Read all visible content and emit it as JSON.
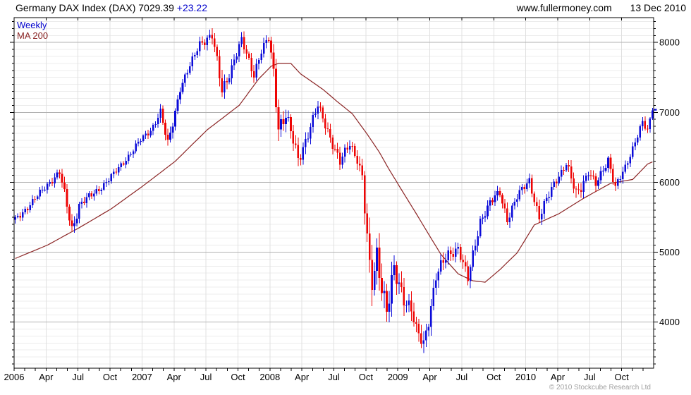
{
  "header": {
    "title": "Germany DAX Index (DAX) 7029.39",
    "change": "+23.22",
    "site": "www.fullermoney.com",
    "date": "13 Dec 2010"
  },
  "legend": {
    "weekly": "Weekly",
    "ma200": "MA 200"
  },
  "footer": {
    "copyright": "© 2010 Stockcube Research Ltd"
  },
  "chart_data": {
    "type": "candlestick",
    "instrument": "Germany DAX Index (DAX)",
    "interval": "Weekly",
    "overlay": "MA 200",
    "last_close": 7029.39,
    "change": 23.22,
    "as_of": "13 Dec 2010",
    "x_start": "2006-01",
    "x_end": "2010-12",
    "weeks": 260,
    "months": 60,
    "ylim": [
      3340,
      8355
    ],
    "y_major_ticks": [
      4000,
      5000,
      6000,
      7000,
      8000
    ],
    "y_minor_step": 100,
    "x_tick_labels": [
      "2006",
      "Apr",
      "Jul",
      "Oct",
      "2007",
      "Apr",
      "Jul",
      "Oct",
      "2008",
      "Apr",
      "Jul",
      "Oct",
      "2009",
      "Apr",
      "Jul",
      "Oct",
      "2010",
      "Apr",
      "Jul",
      "Oct"
    ],
    "price_anchors_weekly": [
      [
        0,
        5460,
        70
      ],
      [
        5,
        5650,
        70
      ],
      [
        9,
        5800,
        65
      ],
      [
        14,
        6010,
        70
      ],
      [
        18,
        6140,
        90
      ],
      [
        23,
        5330,
        140
      ],
      [
        26,
        5680,
        95
      ],
      [
        31,
        5810,
        75
      ],
      [
        35,
        5940,
        70
      ],
      [
        40,
        6110,
        70
      ],
      [
        44,
        6290,
        65
      ],
      [
        51,
        6600,
        65
      ],
      [
        55,
        6750,
        70
      ],
      [
        59,
        7000,
        85
      ],
      [
        62,
        6530,
        120
      ],
      [
        67,
        7350,
        85
      ],
      [
        71,
        7650,
        80
      ],
      [
        75,
        8000,
        85
      ],
      [
        80,
        8090,
        115
      ],
      [
        84,
        7320,
        150
      ],
      [
        88,
        7650,
        110
      ],
      [
        92,
        8020,
        95
      ],
      [
        97,
        7560,
        115
      ],
      [
        100,
        7870,
        95
      ],
      [
        103,
        8050,
        95
      ],
      [
        105,
        7580,
        160
      ],
      [
        107,
        6820,
        210
      ],
      [
        110,
        6950,
        150
      ],
      [
        115,
        6330,
        150
      ],
      [
        119,
        6700,
        120
      ],
      [
        123,
        7080,
        105
      ],
      [
        127,
        6750,
        110
      ],
      [
        132,
        6270,
        115
      ],
      [
        136,
        6560,
        105
      ],
      [
        139,
        6350,
        120
      ],
      [
        141,
        6060,
        150
      ],
      [
        144,
        4700,
        290
      ],
      [
        145,
        4550,
        300
      ],
      [
        147,
        4990,
        270
      ],
      [
        151,
        4150,
        270
      ],
      [
        154,
        4700,
        230
      ],
      [
        158,
        4370,
        190
      ],
      [
        161,
        4200,
        170
      ],
      [
        163,
        3850,
        170
      ],
      [
        166,
        3670,
        170
      ],
      [
        168,
        4050,
        160
      ],
      [
        171,
        4670,
        150
      ],
      [
        176,
        4950,
        130
      ],
      [
        180,
        5080,
        110
      ],
      [
        184,
        4600,
        130
      ],
      [
        189,
        5460,
        105
      ],
      [
        193,
        5700,
        95
      ],
      [
        197,
        5850,
        95
      ],
      [
        200,
        5480,
        105
      ],
      [
        204,
        5780,
        95
      ],
      [
        209,
        6040,
        85
      ],
      [
        213,
        5480,
        115
      ],
      [
        219,
        6000,
        85
      ],
      [
        224,
        6250,
        85
      ],
      [
        228,
        5830,
        150
      ],
      [
        233,
        6150,
        95
      ],
      [
        236,
        5950,
        95
      ],
      [
        241,
        6340,
        85
      ],
      [
        244,
        5920,
        95
      ],
      [
        248,
        6200,
        85
      ],
      [
        252,
        6600,
        75
      ],
      [
        255,
        6850,
        80
      ],
      [
        257,
        6720,
        80
      ],
      [
        259,
        7029.39,
        60
      ]
    ],
    "ma200_anchors_weekly": [
      [
        0,
        4910
      ],
      [
        13,
        5100
      ],
      [
        26,
        5350
      ],
      [
        39,
        5620
      ],
      [
        52,
        5950
      ],
      [
        65,
        6300
      ],
      [
        78,
        6750
      ],
      [
        91,
        7100
      ],
      [
        99,
        7480
      ],
      [
        104,
        7660
      ],
      [
        107,
        7700
      ],
      [
        112,
        7700
      ],
      [
        116,
        7550
      ],
      [
        125,
        7330
      ],
      [
        131,
        7150
      ],
      [
        137,
        6980
      ],
      [
        143,
        6690
      ],
      [
        148,
        6430
      ],
      [
        152,
        6180
      ],
      [
        156,
        5950
      ],
      [
        163,
        5550
      ],
      [
        169,
        5200
      ],
      [
        173,
        4970
      ],
      [
        180,
        4690
      ],
      [
        186,
        4590
      ],
      [
        191,
        4570
      ],
      [
        197,
        4750
      ],
      [
        204,
        4990
      ],
      [
        211,
        5390
      ],
      [
        221,
        5550
      ],
      [
        231,
        5770
      ],
      [
        242,
        5985
      ],
      [
        251,
        6040
      ],
      [
        257,
        6260
      ],
      [
        259,
        6290
      ]
    ],
    "colors": {
      "up": "#0b0bd9",
      "down": "#ee0404",
      "ma": "#8b2525",
      "accent_blue": "#0000cc",
      "grid_minor": "#ececec",
      "grid_major": "#b2b2b2",
      "grid_vertical": "#e0e0e0",
      "axis": "#000000",
      "copyright_gray": "#a0a0a0"
    }
  }
}
